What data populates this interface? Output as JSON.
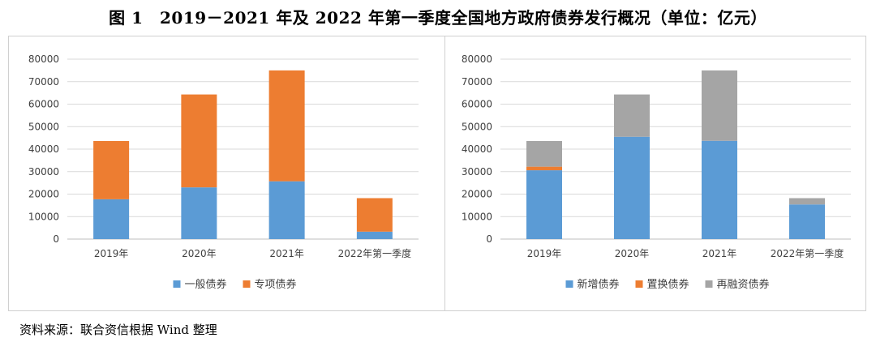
{
  "title": "图 1　2019－2021 年及 2022 年第一季度全国地方政府债券发行概况（单位：亿元）",
  "source": "资料来源：联合资信根据 Wind 整理",
  "chart_data": [
    {
      "type": "bar",
      "stacked": true,
      "categories": [
        "2019年",
        "2020年",
        "2021年",
        "2022年第一季度"
      ],
      "series": [
        {
          "name": "一般债券",
          "color": "#5b9bd5",
          "values": [
            17700,
            23000,
            25700,
            3300
          ]
        },
        {
          "name": "专项债券",
          "color": "#ed7d31",
          "values": [
            25900,
            41300,
            49300,
            14900
          ]
        }
      ],
      "ylim": [
        0,
        80000
      ],
      "yticks": [
        0,
        10000,
        20000,
        30000,
        40000,
        50000,
        60000,
        70000,
        80000
      ],
      "grid": true,
      "legend": "bottom"
    },
    {
      "type": "bar",
      "stacked": true,
      "categories": [
        "2019年",
        "2020年",
        "2021年",
        "2022年第一季度"
      ],
      "series": [
        {
          "name": "新增债券",
          "color": "#5b9bd5",
          "values": [
            30600,
            45500,
            43700,
            15400
          ]
        },
        {
          "name": "置换债券",
          "color": "#ed7d31",
          "values": [
            1600,
            0,
            0,
            0
          ]
        },
        {
          "name": "再融资债券",
          "color": "#a5a5a5",
          "values": [
            11400,
            18800,
            31300,
            2800
          ]
        }
      ],
      "ylim": [
        0,
        80000
      ],
      "yticks": [
        0,
        10000,
        20000,
        30000,
        40000,
        50000,
        60000,
        70000,
        80000
      ],
      "grid": true,
      "legend": "bottom"
    }
  ]
}
